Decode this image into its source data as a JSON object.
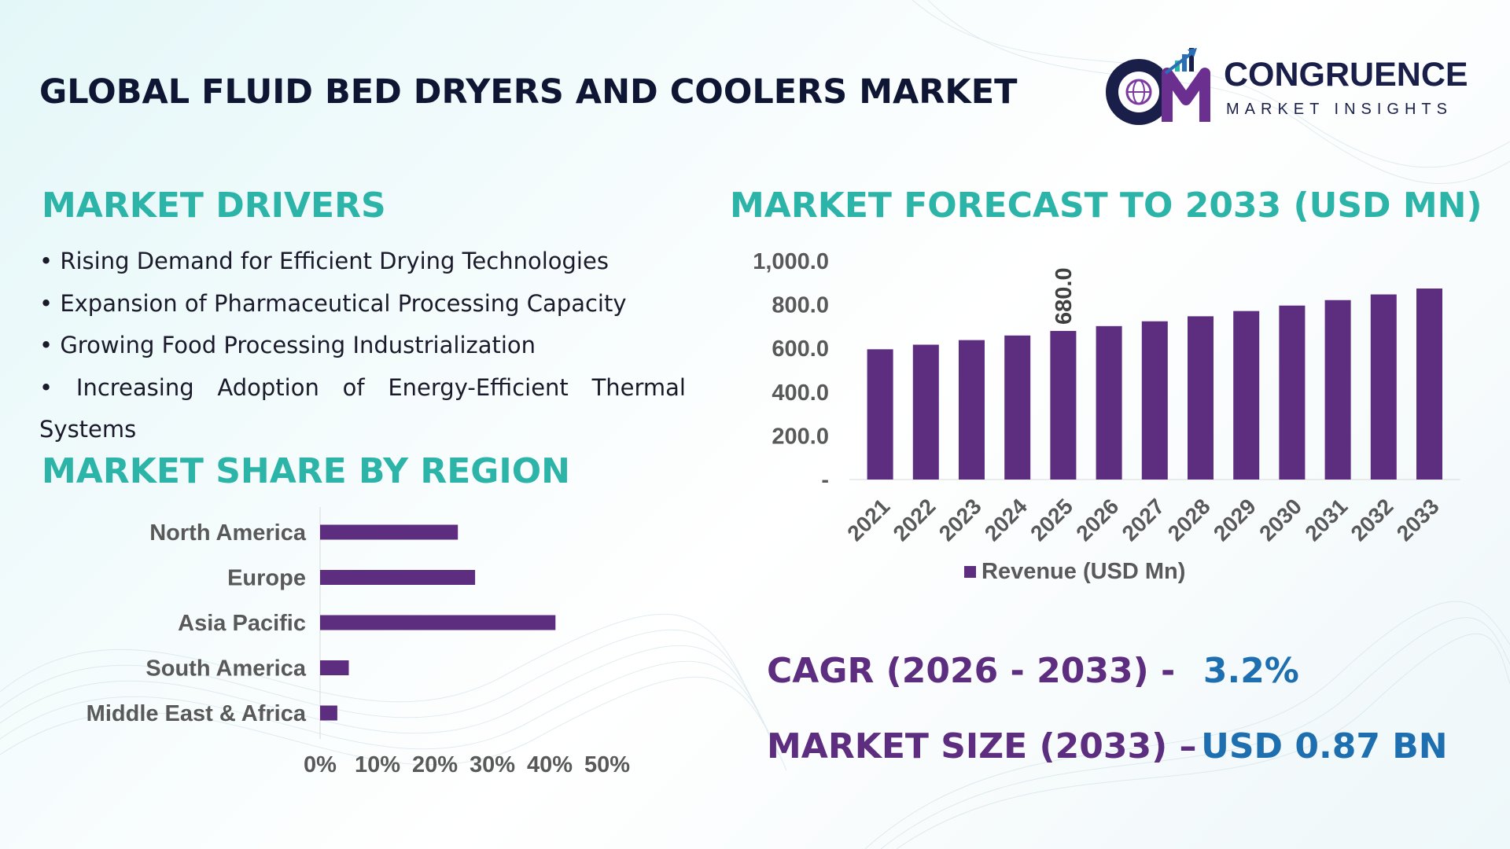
{
  "title": "GLOBAL FLUID BED DRYERS AND COOLERS MARKET",
  "logo": {
    "name": "CONGRUENCE",
    "subtitle": "MARKET INSIGHTS",
    "mark_letters": "CM"
  },
  "colors": {
    "heading_teal": "#2cb4a8",
    "bar_purple": "#5d2d80",
    "value_blue": "#1e6fb0",
    "title_navy": "#0f1633"
  },
  "drivers": {
    "heading": "MARKET DRIVERS",
    "items": [
      "• Rising Demand for Efficient Drying Technologies",
      "• Expansion of Pharmaceutical Processing Capacity",
      "• Growing Food Processing Industrialization",
      "• Increasing Adoption of Energy-Efficient Thermal Systems"
    ]
  },
  "region": {
    "heading": "MARKET SHARE BY REGION"
  },
  "forecast": {
    "heading": "MARKET FORECAST TO 2033 (USD MN)"
  },
  "chart_data": [
    {
      "type": "bar",
      "orientation": "horizontal",
      "categories": [
        "North America",
        "Europe",
        "Asia Pacific",
        "South America",
        "Middle East & Africa"
      ],
      "values": [
        24,
        27,
        41,
        5,
        3
      ],
      "unit": "%",
      "xlim": [
        0,
        50
      ],
      "x_ticks": [
        "0%",
        "10%",
        "20%",
        "30%",
        "40%",
        "50%"
      ],
      "grid": false,
      "legend": "none"
    },
    {
      "type": "bar",
      "categories": [
        "2021",
        "2022",
        "2023",
        "2024",
        "2025",
        "2026",
        "2027",
        "2028",
        "2029",
        "2030",
        "2031",
        "2032",
        "2033"
      ],
      "series": [
        {
          "name": "Revenue (USD Mn)",
          "values": [
            596,
            617,
            638,
            659,
            680,
            702,
            724,
            747,
            771,
            796,
            821,
            847,
            874
          ]
        }
      ],
      "ylim": [
        0,
        1000
      ],
      "y_ticks": [
        "-",
        "200.0",
        "400.0",
        "600.0",
        "800.0",
        "1,000.0"
      ],
      "data_labels": [
        {
          "category": "2025",
          "text": "680.0"
        }
      ],
      "grid": false,
      "legend": "bottom"
    }
  ],
  "stats": {
    "cagr_label": "CAGR (2026 - 2033) -",
    "cagr_value": "3.2%",
    "size_label": "MARKET SIZE (2033) –",
    "size_value": "USD 0.87 BN"
  }
}
